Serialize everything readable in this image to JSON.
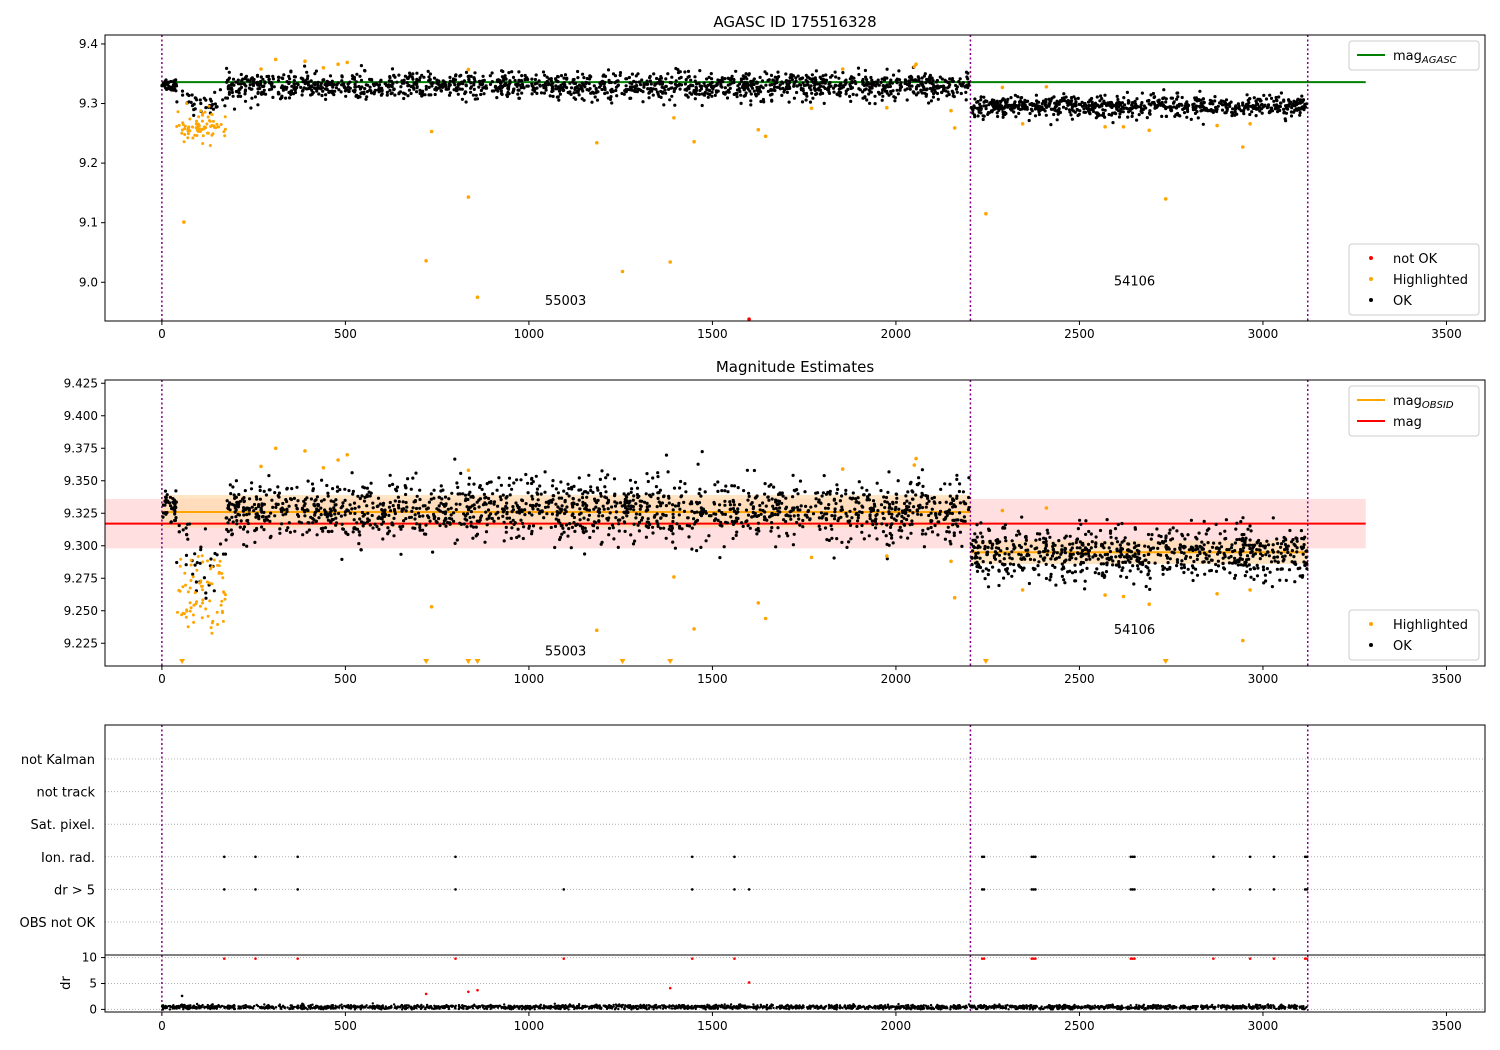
{
  "figure": {
    "background": "#ffffff"
  },
  "colors": {
    "ok": "#000000",
    "highlighted": "#ffa500",
    "not_ok": "#ff0000",
    "agasc_line": "#008000",
    "obsid_line": "#ffa500",
    "mag_line": "#ff0000",
    "obsid_band": "#ffdcb0",
    "mag_band": "#ffd4d4",
    "obs_divider": "#800080",
    "grid": "#b0b0b0"
  },
  "chart_data": [
    {
      "type": "scatter",
      "title": "AGASC ID 175516328",
      "xlim": [
        -155,
        3605
      ],
      "ylim": [
        8.935,
        9.415
      ],
      "x_ticks": [
        0,
        500,
        1000,
        1500,
        2000,
        2500,
        3000,
        3500
      ],
      "y_ticks": [
        9.0,
        9.1,
        9.2,
        9.3,
        9.4
      ],
      "y_tick_labels": [
        "9.0",
        "9.1",
        "9.2",
        "9.3",
        "9.4"
      ],
      "observation_boundaries": [
        0,
        2203,
        3122
      ],
      "observations": [
        {
          "obsid": "55003",
          "x_start": 0,
          "x_end": 2203,
          "label_x": 1100,
          "label_y": 8.962
        },
        {
          "obsid": "54106",
          "x_start": 2203,
          "x_end": 3122,
          "label_x": 2650,
          "label_y": 8.995
        }
      ],
      "reference_lines": [
        {
          "name": "mag_AGASC",
          "y": 9.336,
          "x_start": 0,
          "x_end": 3280,
          "color_key": "agasc_line"
        }
      ],
      "legends": [
        {
          "placement": "upper right",
          "entries": [
            {
              "label": "mag",
              "sub": "AGASC",
              "kind": "line",
              "color_key": "agasc_line"
            }
          ]
        },
        {
          "placement": "lower right",
          "entries": [
            {
              "label": "not OK",
              "kind": "marker",
              "color_key": "not_ok"
            },
            {
              "label": "Highlighted",
              "kind": "marker",
              "color_key": "highlighted"
            },
            {
              "label": "OK",
              "kind": "marker",
              "color_key": "ok"
            }
          ]
        }
      ],
      "series": [
        {
          "name": "OK",
          "segments": [
            {
              "x_start": 0,
              "x_end": 40,
              "mean": 9.332,
              "sd": 0.006,
              "n": 40
            },
            {
              "x_start": 40,
              "x_end": 175,
              "mean": 9.318,
              "sd": 0.008,
              "n": 40,
              "dip": {
                "center": 110,
                "width": 45,
                "depth": 0.07
              }
            },
            {
              "x_start": 175,
              "x_end": 2200,
              "mean": 9.329,
              "sd": 0.011,
              "n": 1600
            },
            {
              "x_start": 2205,
              "x_end": 3120,
              "mean": 9.295,
              "sd": 0.009,
              "n": 780
            }
          ]
        },
        {
          "name": "Highlighted",
          "segments": [
            {
              "x_start": 40,
              "x_end": 175,
              "mean": 9.262,
              "sd": 0.014,
              "n": 75
            }
          ],
          "points": [
            [
              60,
              9.101
            ],
            [
              270,
              9.358
            ],
            [
              310,
              9.374
            ],
            [
              390,
              9.371
            ],
            [
              440,
              9.36
            ],
            [
              480,
              9.366
            ],
            [
              505,
              9.369
            ],
            [
              720,
              9.036
            ],
            [
              735,
              9.253
            ],
            [
              835,
              9.143
            ],
            [
              835,
              9.357
            ],
            [
              860,
              8.975
            ],
            [
              1185,
              9.234
            ],
            [
              1255,
              9.018
            ],
            [
              1385,
              9.034
            ],
            [
              1395,
              9.276
            ],
            [
              1450,
              9.236
            ],
            [
              1625,
              9.256
            ],
            [
              1645,
              9.245
            ],
            [
              1770,
              9.292
            ],
            [
              1855,
              9.358
            ],
            [
              1975,
              9.293
            ],
            [
              2050,
              9.362
            ],
            [
              2055,
              9.366
            ],
            [
              2150,
              9.288
            ],
            [
              2160,
              9.259
            ],
            [
              2245,
              9.115
            ],
            [
              2290,
              9.327
            ],
            [
              2345,
              9.266
            ],
            [
              2410,
              9.328
            ],
            [
              2570,
              9.261
            ],
            [
              2620,
              9.261
            ],
            [
              2690,
              9.255
            ],
            [
              2735,
              9.14
            ],
            [
              2875,
              9.263
            ],
            [
              2945,
              9.227
            ],
            [
              2965,
              9.266
            ]
          ]
        },
        {
          "name": "not OK",
          "points": [
            [
              1600,
              8.938
            ]
          ]
        }
      ]
    },
    {
      "type": "scatter",
      "title": "Magnitude Estimates",
      "xlim": [
        -155,
        3605
      ],
      "ylim": [
        9.2075,
        9.4275
      ],
      "x_ticks": [
        0,
        500,
        1000,
        1500,
        2000,
        2500,
        3000,
        3500
      ],
      "y_ticks": [
        9.225,
        9.25,
        9.275,
        9.3,
        9.325,
        9.35,
        9.375,
        9.4,
        9.425
      ],
      "y_tick_labels": [
        "9.225",
        "9.250",
        "9.275",
        "9.300",
        "9.325",
        "9.350",
        "9.375",
        "9.400",
        "9.425"
      ],
      "observation_boundaries": [
        0,
        2203,
        3122
      ],
      "observations": [
        {
          "obsid": "55003",
          "x_start": 0,
          "x_end": 2203,
          "label_x": 1100,
          "label_y": 9.2155
        },
        {
          "obsid": "54106",
          "x_start": 2203,
          "x_end": 3122,
          "label_x": 2650,
          "label_y": 9.232
        }
      ],
      "bands": [
        {
          "x_start": -155,
          "x_end": 3280,
          "y_low": 9.298,
          "y_high": 9.336,
          "color_key": "mag_band"
        },
        {
          "x_start": 0,
          "x_end": 2203,
          "y_low": 9.314,
          "y_high": 9.339,
          "color_key": "obsid_band"
        },
        {
          "x_start": 2203,
          "x_end": 3122,
          "y_low": 9.286,
          "y_high": 9.304,
          "color_key": "obsid_band"
        }
      ],
      "reference_lines": [
        {
          "name": "mag",
          "y": 9.317,
          "x_start": -155,
          "x_end": 3280,
          "color_key": "mag_line"
        },
        {
          "name": "mag_OBSID",
          "y": 9.326,
          "x_start": 0,
          "x_end": 2203,
          "color_key": "obsid_line"
        },
        {
          "name": "mag_OBSID",
          "y": 9.295,
          "x_start": 2203,
          "x_end": 3122,
          "color_key": "obsid_line"
        }
      ],
      "out_of_range_markers_x": [
        55,
        720,
        835,
        860,
        1255,
        1385,
        2245,
        2735
      ],
      "legends": [
        {
          "placement": "upper right",
          "entries": [
            {
              "label": "mag",
              "sub": "OBSID",
              "kind": "line",
              "color_key": "obsid_line"
            },
            {
              "label": "mag",
              "kind": "line",
              "color_key": "mag_line"
            }
          ]
        },
        {
          "placement": "lower right",
          "entries": [
            {
              "label": "Highlighted",
              "kind": "marker",
              "color_key": "highlighted"
            },
            {
              "label": "OK",
              "kind": "marker",
              "color_key": "ok"
            }
          ]
        }
      ],
      "series": [
        {
          "name": "OK",
          "segments": [
            {
              "x_start": 0,
              "x_end": 40,
              "mean": 9.33,
              "sd": 0.008,
              "n": 40
            },
            {
              "x_start": 40,
              "x_end": 175,
              "mean": 9.305,
              "sd": 0.012,
              "n": 40,
              "dip": {
                "center": 110,
                "width": 45,
                "depth": 0.07
              }
            },
            {
              "x_start": 175,
              "x_end": 2200,
              "mean": 9.327,
              "sd": 0.012,
              "n": 1600
            },
            {
              "x_start": 2205,
              "x_end": 3120,
              "mean": 9.294,
              "sd": 0.01,
              "n": 780
            }
          ]
        },
        {
          "name": "Highlighted",
          "segments": [
            {
              "x_start": 40,
              "x_end": 175,
              "mean": 9.262,
              "sd": 0.016,
              "n": 75
            }
          ],
          "points": [
            [
              270,
              9.361
            ],
            [
              310,
              9.375
            ],
            [
              390,
              9.373
            ],
            [
              440,
              9.36
            ],
            [
              480,
              9.366
            ],
            [
              505,
              9.37
            ],
            [
              735,
              9.253
            ],
            [
              835,
              9.358
            ],
            [
              1185,
              9.235
            ],
            [
              1395,
              9.276
            ],
            [
              1450,
              9.236
            ],
            [
              1625,
              9.256
            ],
            [
              1645,
              9.244
            ],
            [
              1770,
              9.291
            ],
            [
              1855,
              9.359
            ],
            [
              1975,
              9.292
            ],
            [
              2050,
              9.362
            ],
            [
              2055,
              9.367
            ],
            [
              2150,
              9.288
            ],
            [
              2160,
              9.26
            ],
            [
              2290,
              9.327
            ],
            [
              2345,
              9.266
            ],
            [
              2410,
              9.329
            ],
            [
              2570,
              9.262
            ],
            [
              2620,
              9.261
            ],
            [
              2690,
              9.255
            ],
            [
              2875,
              9.263
            ],
            [
              2945,
              9.227
            ],
            [
              2965,
              9.266
            ]
          ]
        }
      ]
    },
    {
      "type": "scatter",
      "title": "",
      "xlim": [
        -155,
        3605
      ],
      "x_ticks": [
        0,
        500,
        1000,
        1500,
        2000,
        2500,
        3000,
        3500
      ],
      "observation_boundaries": [
        0,
        2203,
        3122
      ],
      "flag_rows": [
        "not Kalman",
        "not track",
        "Sat. pixel.",
        "Ion. rad.",
        "dr > 5",
        "OBS not OK"
      ],
      "flags": {
        "Ion. rad.": [
          170,
          255,
          370,
          800,
          1445,
          1560,
          2235,
          2240,
          2370,
          2375,
          2380,
          2640,
          2645,
          2650,
          2865,
          2965,
          3030,
          3115,
          3120
        ],
        "dr > 5": [
          170,
          255,
          370,
          800,
          1095,
          1445,
          1560,
          1600,
          2235,
          2240,
          2370,
          2375,
          2380,
          2640,
          2645,
          2650,
          2865,
          2965,
          3030,
          3115,
          3120
        ]
      },
      "dr_panel": {
        "ylabel": "dr",
        "ylim": [
          -0.5,
          10.5
        ],
        "y_ticks": [
          0,
          5,
          10
        ],
        "y_tick_labels": [
          "0",
          "5",
          "10"
        ],
        "baseline": {
          "x_start": 0,
          "x_end": 3120,
          "mean": 0.45,
          "sd": 0.2,
          "n": 2500
        },
        "red_points": [
          [
            170,
            9.8
          ],
          [
            255,
            9.8
          ],
          [
            370,
            9.8
          ],
          [
            720,
            3.0
          ],
          [
            800,
            9.8
          ],
          [
            835,
            3.4
          ],
          [
            860,
            3.7
          ],
          [
            1095,
            9.8
          ],
          [
            1385,
            4.1
          ],
          [
            1445,
            9.8
          ],
          [
            1560,
            9.8
          ],
          [
            1600,
            5.2
          ],
          [
            2235,
            9.8
          ],
          [
            2240,
            9.8
          ],
          [
            2370,
            9.8
          ],
          [
            2375,
            9.8
          ],
          [
            2380,
            9.8
          ],
          [
            2640,
            9.8
          ],
          [
            2645,
            9.8
          ],
          [
            2650,
            9.8
          ],
          [
            2865,
            9.8
          ],
          [
            2965,
            9.8
          ],
          [
            3030,
            9.8
          ],
          [
            3115,
            9.8
          ],
          [
            3120,
            9.8
          ]
        ],
        "black_points": [
          [
            55,
            2.6
          ]
        ]
      }
    }
  ]
}
